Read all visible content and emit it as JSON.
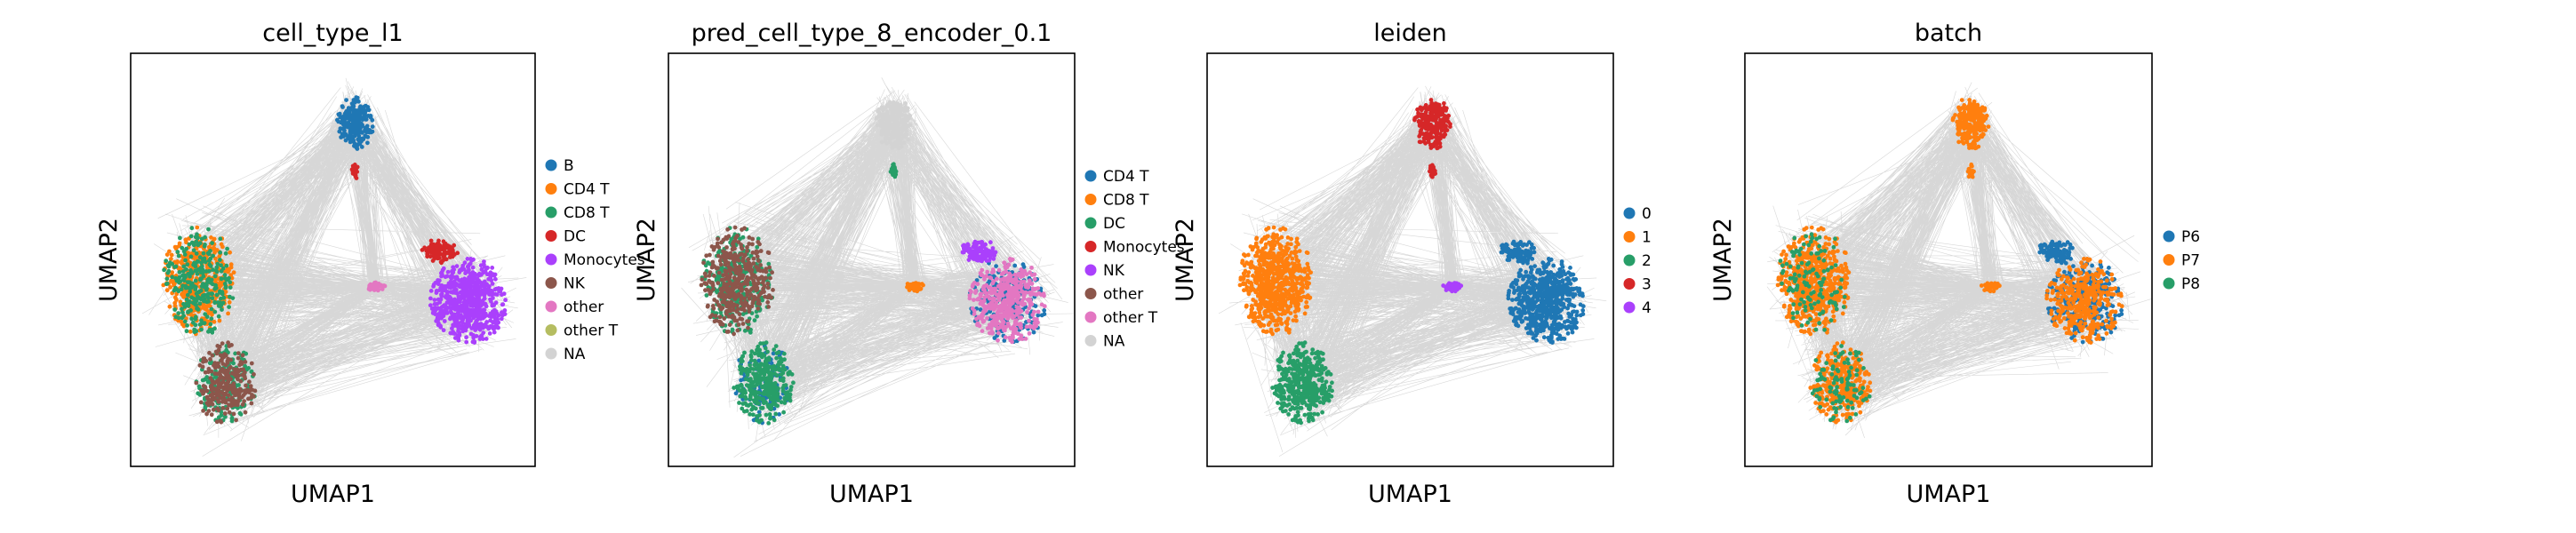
{
  "chart_data": [
    {
      "type": "scatter",
      "title": "cell_type_l1",
      "xlabel": "UMAP1",
      "ylabel": "UMAP2",
      "grid": false,
      "legend_position": "right",
      "legend": [
        {
          "name": "B",
          "color": "#1f77b4"
        },
        {
          "name": "CD4 T",
          "color": "#ff7f0e"
        },
        {
          "name": "CD8 T",
          "color": "#279e68"
        },
        {
          "name": "DC",
          "color": "#d62728"
        },
        {
          "name": "Monocytes",
          "color": "#aa40fc"
        },
        {
          "name": "NK",
          "color": "#8c564b"
        },
        {
          "name": "other",
          "color": "#e377c2"
        },
        {
          "name": "other T",
          "color": "#b5bd61"
        },
        {
          "name": "NA",
          "color": "#d3d3d3"
        }
      ]
    },
    {
      "type": "scatter",
      "title": "pred_cell_type_8_encoder_0.1",
      "xlabel": "UMAP1",
      "ylabel": "UMAP2",
      "grid": false,
      "legend_position": "right",
      "legend": [
        {
          "name": "CD4 T",
          "color": "#1f77b4"
        },
        {
          "name": "CD8 T",
          "color": "#ff7f0e"
        },
        {
          "name": "DC",
          "color": "#279e68"
        },
        {
          "name": "Monocytes",
          "color": "#d62728"
        },
        {
          "name": "NK",
          "color": "#aa40fc"
        },
        {
          "name": "other",
          "color": "#8c564b"
        },
        {
          "name": "other T",
          "color": "#e377c2"
        },
        {
          "name": "NA",
          "color": "#d3d3d3"
        }
      ]
    },
    {
      "type": "scatter",
      "title": "leiden",
      "xlabel": "UMAP1",
      "ylabel": "UMAP2",
      "grid": false,
      "legend_position": "right",
      "legend": [
        {
          "name": "0",
          "color": "#1f77b4"
        },
        {
          "name": "1",
          "color": "#ff7f0e"
        },
        {
          "name": "2",
          "color": "#279e68"
        },
        {
          "name": "3",
          "color": "#d62728"
        },
        {
          "name": "4",
          "color": "#aa40fc"
        }
      ]
    },
    {
      "type": "scatter",
      "title": "batch",
      "xlabel": "UMAP1",
      "ylabel": "UMAP2",
      "grid": false,
      "legend_position": "right",
      "legend": [
        {
          "name": "P6",
          "color": "#1f77b4"
        },
        {
          "name": "P7",
          "color": "#ff7f0e"
        },
        {
          "name": "P8",
          "color": "#279e68"
        }
      ]
    }
  ],
  "colors": {
    "edges": "#8c8c8c",
    "axes": "#000000",
    "background": "#ffffff"
  }
}
